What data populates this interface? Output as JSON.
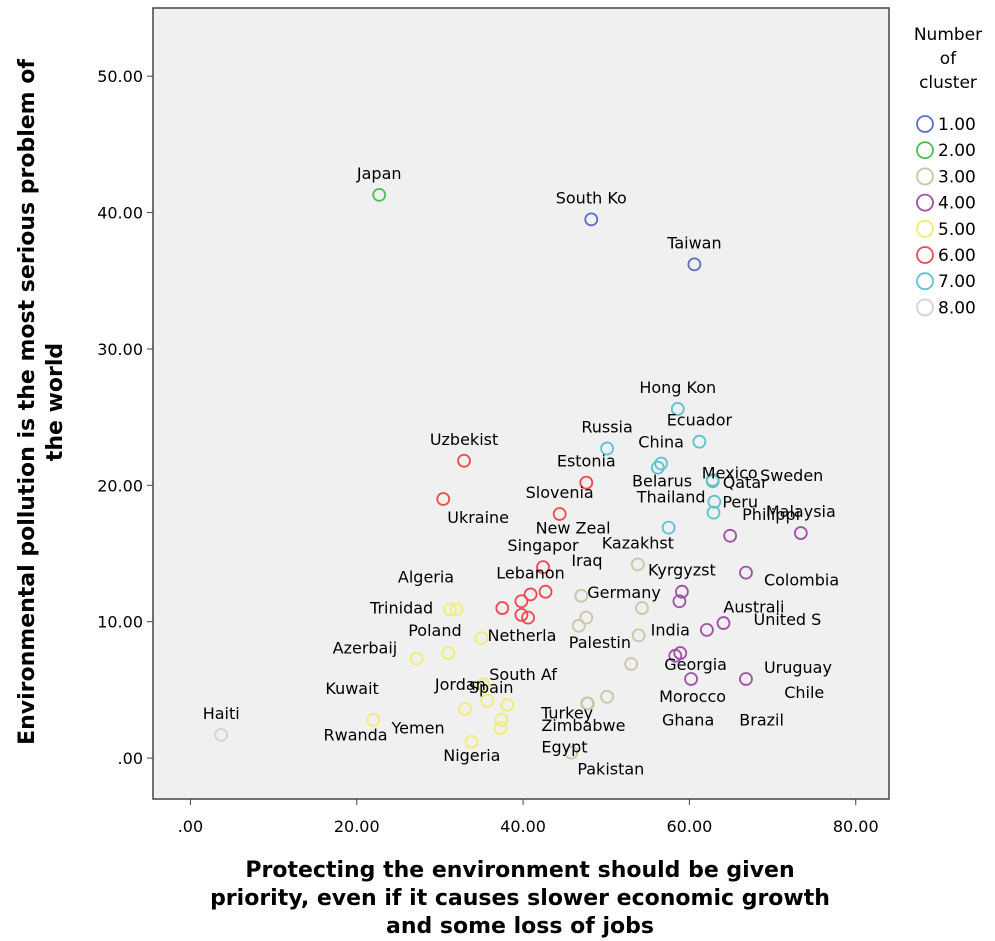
{
  "chart_data": {
    "type": "scatter",
    "xlabel_lines": [
      "Protecting the environment should be given",
      "priority, even if it causes slower economic growth",
      "and some loss of jobs"
    ],
    "ylabel_lines": [
      "Environmental pollution is the most serious problem of",
      "the world"
    ],
    "xlim": [
      -4.5,
      84
    ],
    "ylim": [
      -3,
      55
    ],
    "x_ticks": [
      {
        "value": 0,
        "label": ".00"
      },
      {
        "value": 20,
        "label": "20.00"
      },
      {
        "value": 40,
        "label": "40.00"
      },
      {
        "value": 60,
        "label": "60.00"
      },
      {
        "value": 80,
        "label": "80.00"
      }
    ],
    "y_ticks": [
      {
        "value": 0,
        "label": ".00"
      },
      {
        "value": 10,
        "label": "10.00"
      },
      {
        "value": 20,
        "label": "20.00"
      },
      {
        "value": 30,
        "label": "30.00"
      },
      {
        "value": 40,
        "label": "40.00"
      },
      {
        "value": 50,
        "label": "50.00"
      }
    ],
    "grid": false,
    "legend": {
      "title_lines": [
        "Number",
        "of",
        "cluster"
      ],
      "placement": "right",
      "entries": [
        {
          "label": "1.00",
          "color": "#5a6fc4"
        },
        {
          "label": "2.00",
          "color": "#4bbd53"
        },
        {
          "label": "3.00",
          "color": "#cbc6a3"
        },
        {
          "label": "4.00",
          "color": "#a052a8"
        },
        {
          "label": "5.00",
          "color": "#f1ed6e"
        },
        {
          "label": "6.00",
          "color": "#ed4a50"
        },
        {
          "label": "7.00",
          "color": "#5bc4cf"
        },
        {
          "label": "8.00",
          "color": "#d3d3d3"
        }
      ]
    },
    "points": [
      {
        "x": 3.7,
        "y": 1.7,
        "cluster": 8,
        "label": "Haiti",
        "lp": "a"
      },
      {
        "x": 22.7,
        "y": 41.3,
        "cluster": 2,
        "label": "Japan",
        "lp": "a"
      },
      {
        "x": 48.2,
        "y": 39.5,
        "cluster": 1,
        "label": "South Ko",
        "lp": "a"
      },
      {
        "x": 60.6,
        "y": 36.2,
        "cluster": 1,
        "label": "Taiwan",
        "lp": "a"
      },
      {
        "x": 58.6,
        "y": 25.6,
        "cluster": 7,
        "label": "Hong Kon",
        "lp": "a"
      },
      {
        "x": 50.1,
        "y": 22.7,
        "cluster": 7,
        "label": "Russia",
        "lp": "a"
      },
      {
        "x": 61.2,
        "y": 23.2,
        "cluster": 7,
        "label": "Ecuador",
        "lp": "a"
      },
      {
        "x": 56.6,
        "y": 21.6,
        "cluster": 7,
        "label": "China",
        "lp": "a"
      },
      {
        "x": 56.2,
        "y": 21.3,
        "cluster": 7,
        "label": "Mexico",
        "lp": "b"
      },
      {
        "x": 62.8,
        "y": 20.4,
        "cluster": 7,
        "label": "Qatar",
        "lp": "c"
      },
      {
        "x": 62.8,
        "y": 20.3,
        "cluster": 7,
        "label": "",
        "lp": "n"
      },
      {
        "x": 63.0,
        "y": 18.8,
        "cluster": 7,
        "label": "Peru",
        "lp": "d"
      },
      {
        "x": 62.9,
        "y": 18.0,
        "cluster": 7,
        "label": "Thailand",
        "lp": "e"
      },
      {
        "x": 57.5,
        "y": 16.9,
        "cluster": 7,
        "label": "New Zeal",
        "lp": "f"
      },
      {
        "x": 32.9,
        "y": 21.8,
        "cluster": 6,
        "label": "Uzbekist",
        "lp": "a"
      },
      {
        "x": 30.4,
        "y": 19.0,
        "cluster": 6,
        "label": "Ukraine",
        "lp": "g"
      },
      {
        "x": 47.6,
        "y": 20.2,
        "cluster": 6,
        "label": "Estonia",
        "lp": "a"
      },
      {
        "x": 44.4,
        "y": 17.9,
        "cluster": 6,
        "label": "Slovenia",
        "lp": "a"
      },
      {
        "x": 42.4,
        "y": 14.0,
        "cluster": 6,
        "label": "Singapor",
        "lp": "a"
      },
      {
        "x": 42.7,
        "y": 12.2,
        "cluster": 6,
        "label": "",
        "lp": "n"
      },
      {
        "x": 40.9,
        "y": 12.0,
        "cluster": 6,
        "label": "Lebanon",
        "lp": "a"
      },
      {
        "x": 39.8,
        "y": 11.5,
        "cluster": 6,
        "label": "",
        "lp": "n"
      },
      {
        "x": 37.5,
        "y": 11.0,
        "cluster": 6,
        "label": "",
        "lp": "n"
      },
      {
        "x": 39.8,
        "y": 10.5,
        "cluster": 6,
        "label": "",
        "lp": "n"
      },
      {
        "x": 40.6,
        "y": 10.3,
        "cluster": 6,
        "label": "",
        "lp": "n"
      },
      {
        "x": 53.8,
        "y": 14.2,
        "cluster": 3,
        "label": "Kazakhst",
        "lp": "a"
      },
      {
        "x": 47.0,
        "y": 11.9,
        "cluster": 3,
        "label": "Germany",
        "lp": "h"
      },
      {
        "x": 54.3,
        "y": 11.0,
        "cluster": 3,
        "label": "",
        "lp": "n"
      },
      {
        "x": 47.6,
        "y": 10.3,
        "cluster": 3,
        "label": "",
        "lp": "n"
      },
      {
        "x": 46.7,
        "y": 9.7,
        "cluster": 3,
        "label": "Palestin",
        "lp": "i"
      },
      {
        "x": 53.9,
        "y": 9.0,
        "cluster": 3,
        "label": "India",
        "lp": "j"
      },
      {
        "x": 53.0,
        "y": 6.9,
        "cluster": 3,
        "label": "",
        "lp": "n"
      },
      {
        "x": 50.1,
        "y": 4.5,
        "cluster": 3,
        "label": "Turkey",
        "lp": "k"
      },
      {
        "x": 47.8,
        "y": 4.0,
        "cluster": 3,
        "label": "",
        "lp": "n"
      },
      {
        "x": 47.7,
        "y": 4.0,
        "cluster": 3,
        "label": "",
        "lp": "n"
      },
      {
        "x": 45.8,
        "y": 0.4,
        "cluster": 3,
        "label": "Pakistan",
        "lp": "l"
      },
      {
        "x": 73.4,
        "y": 16.5,
        "cluster": 4,
        "label": "Malaysia",
        "lp": "a"
      },
      {
        "x": 64.9,
        "y": 16.3,
        "cluster": 4,
        "label": "Philippi",
        "lp": "m"
      },
      {
        "x": 66.8,
        "y": 13.6,
        "cluster": 4,
        "label": "Colombia",
        "lp": "o"
      },
      {
        "x": 59.1,
        "y": 12.2,
        "cluster": 4,
        "label": "Kyrgyzst",
        "lp": "a"
      },
      {
        "x": 58.8,
        "y": 11.5,
        "cluster": 4,
        "label": "Australi",
        "lp": "b"
      },
      {
        "x": 64.1,
        "y": 9.9,
        "cluster": 4,
        "label": "United S",
        "lp": "p"
      },
      {
        "x": 62.1,
        "y": 9.4,
        "cluster": 4,
        "label": "",
        "lp": "n"
      },
      {
        "x": 58.9,
        "y": 7.7,
        "cluster": 4,
        "label": "Georgia",
        "lp": "q"
      },
      {
        "x": 58.3,
        "y": 7.5,
        "cluster": 4,
        "label": "",
        "lp": "n"
      },
      {
        "x": 66.8,
        "y": 5.8,
        "cluster": 4,
        "label": "Uruguay",
        "lp": "r"
      },
      {
        "x": 60.2,
        "y": 5.8,
        "cluster": 4,
        "label": "Morocco",
        "lp": "s"
      },
      {
        "x": 31.2,
        "y": 10.9,
        "cluster": 5,
        "label": "Algeria",
        "lp": "t"
      },
      {
        "x": 32.0,
        "y": 10.9,
        "cluster": 5,
        "label": "",
        "lp": "n"
      },
      {
        "x": 35.0,
        "y": 8.8,
        "cluster": 5,
        "label": "Netherla",
        "lp": "u"
      },
      {
        "x": 31.0,
        "y": 7.7,
        "cluster": 5,
        "label": "Poland",
        "lp": "v"
      },
      {
        "x": 27.2,
        "y": 7.3,
        "cluster": 5,
        "label": "Azerbaij",
        "lp": "w"
      },
      {
        "x": 35.2,
        "y": 5.4,
        "cluster": 5,
        "label": "",
        "lp": "n"
      },
      {
        "x": 35.7,
        "y": 4.2,
        "cluster": 5,
        "label": "",
        "lp": "n"
      },
      {
        "x": 38.1,
        "y": 3.9,
        "cluster": 5,
        "label": "South Af",
        "lp": "x"
      },
      {
        "x": 33.0,
        "y": 3.6,
        "cluster": 5,
        "label": "Spain",
        "lp": "y"
      },
      {
        "x": 37.4,
        "y": 2.8,
        "cluster": 5,
        "label": "",
        "lp": "n"
      },
      {
        "x": 37.3,
        "y": 2.2,
        "cluster": 5,
        "label": "",
        "lp": "n"
      },
      {
        "x": 22.0,
        "y": 2.8,
        "cluster": 5,
        "label": "Kuwait",
        "lp": "z"
      },
      {
        "x": 33.8,
        "y": 1.2,
        "cluster": 5,
        "label": "Yemen",
        "lp": "aa"
      }
    ],
    "annotations": [
      {
        "text": "Sweden",
        "x": 68.5,
        "y": 20.3
      },
      {
        "text": "Belarus",
        "x": 53.1,
        "y": 19.9
      },
      {
        "text": "Iraq",
        "x": 45.8,
        "y": 14.1
      },
      {
        "text": "Chile",
        "x": 71.4,
        "y": 4.4
      },
      {
        "text": "Trinidad",
        "x": 21.6,
        "y": 10.6
      },
      {
        "text": "Jordan",
        "x": 29.4,
        "y": 5.0
      },
      {
        "text": "Zimbabwe",
        "x": 42.2,
        "y": 2.0
      },
      {
        "text": "Ghana",
        "x": 56.7,
        "y": 2.4
      },
      {
        "text": "Brazil",
        "x": 66.0,
        "y": 2.4
      },
      {
        "text": "Egypt",
        "x": 42.2,
        "y": 0.4
      },
      {
        "text": "Rwanda",
        "x": 16.0,
        "y": 1.3
      },
      {
        "text": "Nigeria",
        "x": 30.4,
        "y": -0.2
      }
    ]
  }
}
